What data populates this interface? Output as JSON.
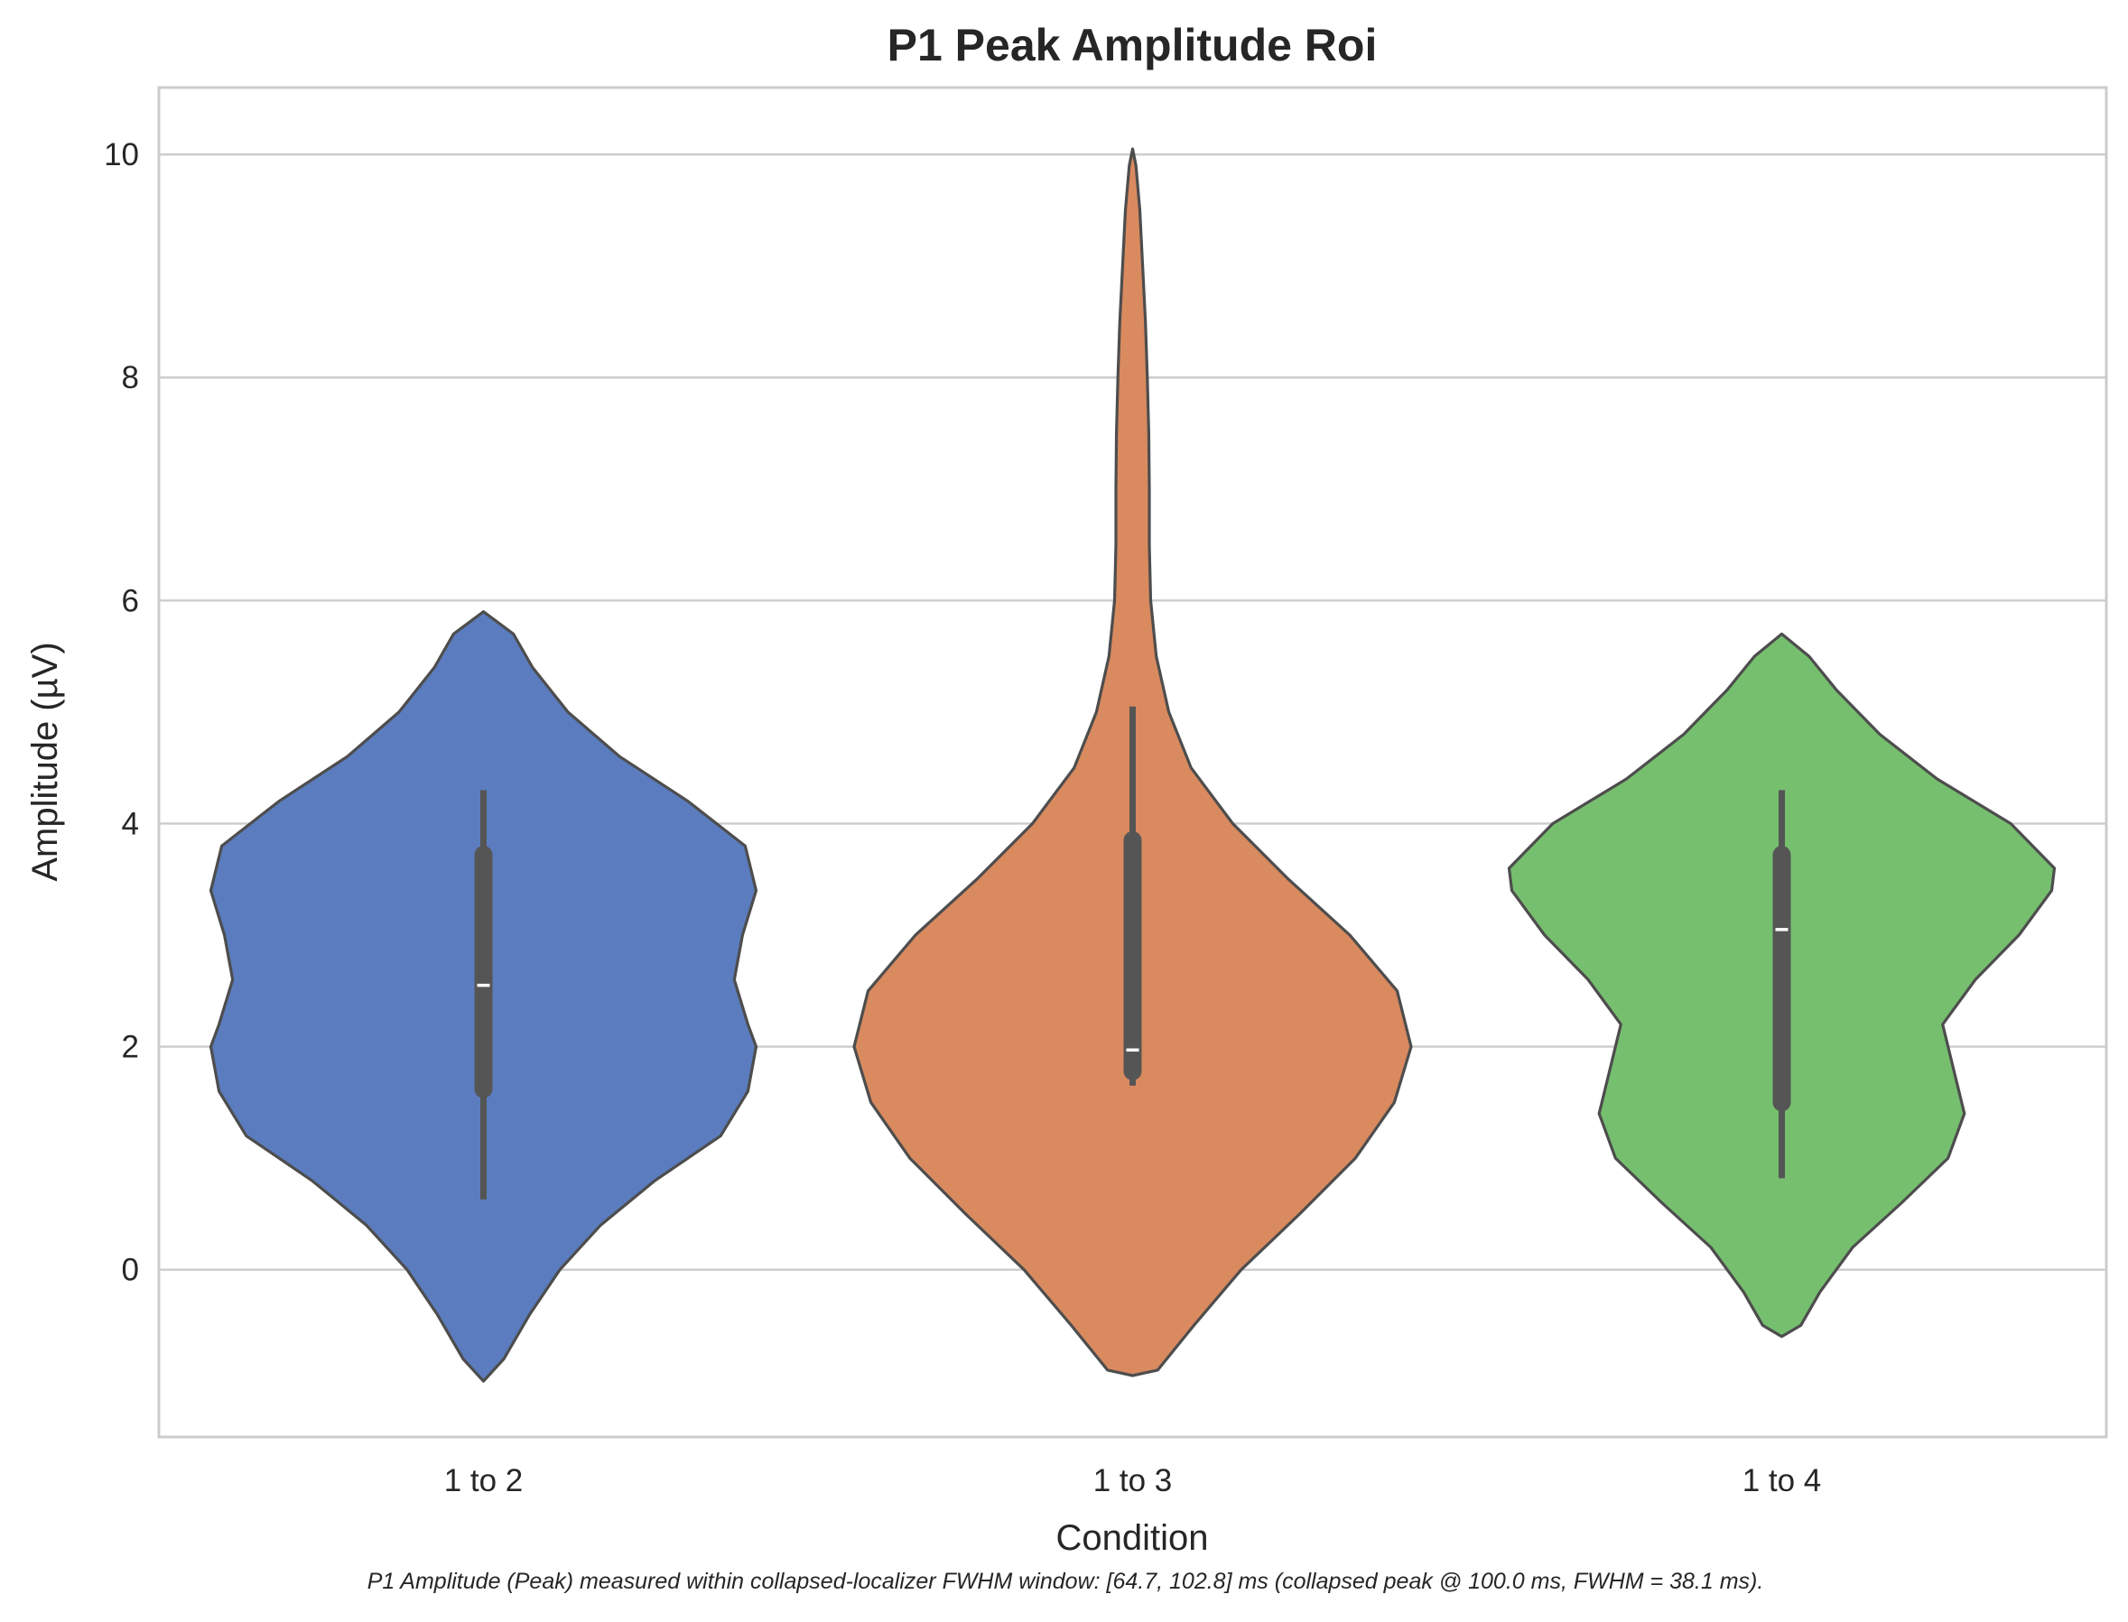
{
  "chart_data": {
    "type": "violin",
    "title": "P1 Peak Amplitude Roi",
    "xlabel": "Condition",
    "ylabel": "Amplitude (µV)",
    "ylim": [
      -1.5,
      10.6
    ],
    "yticks": [
      0,
      2,
      4,
      6,
      8,
      10
    ],
    "grid": true,
    "categories": [
      "1 to 2",
      "1 to 3",
      "1 to 4"
    ],
    "colors": [
      "#5b7dbf",
      "#d98a5f",
      "#76bf6f"
    ],
    "series": [
      {
        "category": "1 to 2",
        "min": 0.63,
        "q1": 1.62,
        "median": 2.55,
        "q3": 3.72,
        "max": 4.3,
        "kde_max_half_width": 0.14,
        "density": [
          [
            -1.0,
            0.0
          ],
          [
            -0.8,
            0.075
          ],
          [
            -0.4,
            0.17
          ],
          [
            0.0,
            0.28
          ],
          [
            0.4,
            0.43
          ],
          [
            0.8,
            0.63
          ],
          [
            1.2,
            0.87
          ],
          [
            1.6,
            0.97
          ],
          [
            2.0,
            1.0
          ],
          [
            2.2,
            0.97
          ],
          [
            2.6,
            0.92
          ],
          [
            3.0,
            0.95
          ],
          [
            3.4,
            1.0
          ],
          [
            3.8,
            0.96
          ],
          [
            4.2,
            0.75
          ],
          [
            4.6,
            0.5
          ],
          [
            5.0,
            0.31
          ],
          [
            5.4,
            0.18
          ],
          [
            5.7,
            0.11
          ],
          [
            5.9,
            0.0
          ]
        ]
      },
      {
        "category": "1 to 3",
        "min": 1.65,
        "q1": 1.78,
        "median": 1.97,
        "q3": 3.85,
        "max": 5.05,
        "kde_max_half_width": 0.143,
        "density": [
          [
            -0.95,
            0.0
          ],
          [
            -0.9,
            0.09
          ],
          [
            -0.5,
            0.22
          ],
          [
            0.0,
            0.39
          ],
          [
            0.5,
            0.6
          ],
          [
            1.0,
            0.8
          ],
          [
            1.5,
            0.94
          ],
          [
            2.0,
            1.0
          ],
          [
            2.5,
            0.95
          ],
          [
            3.0,
            0.78
          ],
          [
            3.5,
            0.56
          ],
          [
            4.0,
            0.36
          ],
          [
            4.5,
            0.21
          ],
          [
            5.0,
            0.13
          ],
          [
            5.5,
            0.085
          ],
          [
            6.0,
            0.065
          ],
          [
            6.5,
            0.06
          ],
          [
            7.0,
            0.06
          ],
          [
            7.5,
            0.058
          ],
          [
            8.0,
            0.053
          ],
          [
            8.5,
            0.046
          ],
          [
            9.0,
            0.036
          ],
          [
            9.5,
            0.026
          ],
          [
            9.9,
            0.012
          ],
          [
            10.05,
            0.0
          ]
        ]
      },
      {
        "category": "1 to 4",
        "min": 0.82,
        "q1": 1.5,
        "median": 3.05,
        "q3": 3.72,
        "max": 4.3,
        "kde_max_half_width": 0.14,
        "density": [
          [
            -0.6,
            0.0
          ],
          [
            -0.5,
            0.07
          ],
          [
            -0.2,
            0.14
          ],
          [
            0.2,
            0.26
          ],
          [
            0.6,
            0.44
          ],
          [
            1.0,
            0.61
          ],
          [
            1.4,
            0.67
          ],
          [
            1.8,
            0.63
          ],
          [
            2.2,
            0.59
          ],
          [
            2.6,
            0.71
          ],
          [
            3.0,
            0.87
          ],
          [
            3.4,
            0.99
          ],
          [
            3.6,
            1.0
          ],
          [
            4.0,
            0.84
          ],
          [
            4.4,
            0.57
          ],
          [
            4.8,
            0.36
          ],
          [
            5.2,
            0.2
          ],
          [
            5.5,
            0.1
          ],
          [
            5.7,
            0.0
          ]
        ]
      }
    ],
    "footnote": "P1 Amplitude (Peak) measured within collapsed-localizer FWHM window: [64.7, 102.8] ms (collapsed peak @ 100.0 ms, FWHM = 38.1 ms)."
  }
}
